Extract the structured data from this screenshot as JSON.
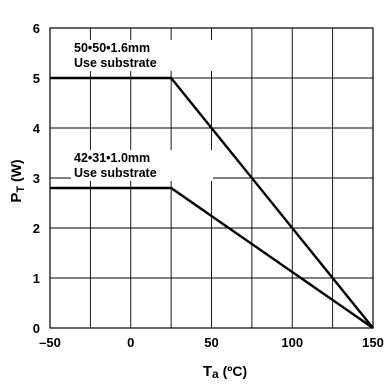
{
  "chart_data": {
    "type": "line",
    "xlabel_main": "T",
    "xlabel_sub": "a",
    "xlabel_unit": " (ºC)",
    "ylabel_main": "P",
    "ylabel_sub": "T",
    "ylabel_unit": " (W)",
    "xlim": [
      -50,
      150
    ],
    "ylim": [
      0,
      6
    ],
    "x_ticks": [
      "–50",
      "0",
      "50",
      "100",
      "150"
    ],
    "x_tick_values": [
      -50,
      0,
      50,
      100,
      150
    ],
    "y_ticks": [
      "0",
      "1",
      "2",
      "3",
      "4",
      "5",
      "6"
    ],
    "y_tick_values": [
      0,
      1,
      2,
      3,
      4,
      5,
      6
    ],
    "x_grid_step": 25,
    "grid": true,
    "series": [
      {
        "points": [
          [
            -50,
            5.0
          ],
          [
            25,
            5.0
          ],
          [
            150,
            0
          ]
        ],
        "annotation_line1": "50•50•1.6mm",
        "annotation_line2": "Use substrate"
      },
      {
        "points": [
          [
            -50,
            2.8
          ],
          [
            25,
            2.8
          ],
          [
            150,
            0
          ]
        ],
        "annotation_line1": "42•31•1.0mm",
        "annotation_line2": "Use substrate"
      }
    ]
  }
}
